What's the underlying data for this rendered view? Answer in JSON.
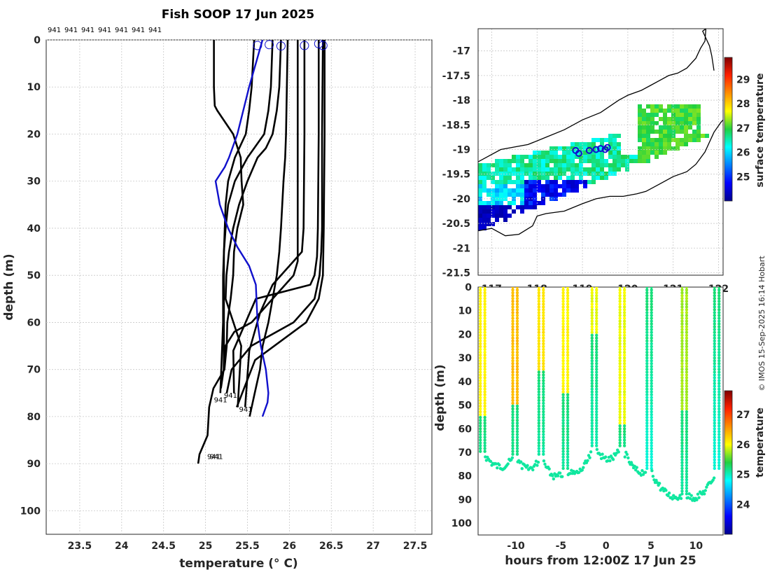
{
  "title": "Fish SOOP 17 Jun 2025",
  "credit": "© IMOS 15-Sep-2025 16:14 Hobart",
  "top_label_row": [
    "941",
    "941",
    "941",
    "941",
    "941",
    "941",
    "941"
  ],
  "chart_data": [
    {
      "type": "line",
      "name": "profiles",
      "xlabel": "temperature (° C)",
      "ylabel": "depth (m)",
      "xlim": [
        23.1,
        27.7
      ],
      "ylim": [
        105,
        0
      ],
      "xticks": [
        "23.5",
        "24",
        "24.5",
        "25",
        "25.5",
        "26",
        "26.5",
        "27",
        "27.5"
      ],
      "yticks": [
        "0",
        "10",
        "20",
        "30",
        "40",
        "50",
        "60",
        "70",
        "80",
        "90",
        "100"
      ],
      "grid": true,
      "mean_profile": {
        "x": [
          25.68,
          25.6,
          25.52,
          25.45,
          25.38,
          25.28,
          25.23,
          25.12,
          25.17,
          25.27,
          25.38,
          25.52,
          25.6,
          25.62,
          25.66,
          25.72,
          25.75,
          25.74,
          25.68
        ],
        "y": [
          0,
          5,
          10,
          15,
          20,
          25,
          27,
          30,
          35,
          40,
          44,
          48,
          52,
          60,
          65,
          70,
          75,
          77,
          80
        ]
      },
      "profiles": [
        {
          "x": [
            25.1,
            25.1,
            25.11,
            25.14,
            25.33,
            25.42,
            25.43,
            25.45,
            25.38,
            25.34,
            25.33,
            25.3,
            25.26,
            25.23,
            25.2,
            25.12,
            25.05,
            25.0,
            24.95,
            24.92
          ],
          "y": [
            0,
            10,
            14,
            15,
            20,
            25,
            30,
            35,
            40,
            45,
            50,
            55,
            60,
            65,
            70,
            74,
            78,
            84,
            88,
            90
          ]
        },
        {
          "x": [
            25.58,
            25.55,
            25.52,
            25.48,
            25.35,
            25.27,
            25.24,
            25.23,
            25.22,
            25.22,
            25.22,
            25.22,
            25.21,
            25.2
          ],
          "y": [
            0,
            10,
            15,
            20,
            25,
            30,
            35,
            40,
            45,
            50,
            60,
            65,
            70,
            74
          ]
        },
        {
          "x": [
            25.8,
            25.78,
            25.75,
            25.7,
            25.5,
            25.35,
            25.27,
            25.24,
            25.22,
            25.21,
            25.21,
            25.2
          ],
          "y": [
            0,
            10,
            15,
            20,
            25,
            30,
            35,
            40,
            45,
            50,
            60,
            75
          ]
        },
        {
          "x": [
            25.9,
            25.88,
            25.85,
            25.8,
            25.72,
            25.62,
            25.5,
            25.4,
            25.33,
            25.28,
            25.25,
            25.24,
            25.4,
            25.39
          ],
          "y": [
            0,
            10,
            15,
            20,
            23,
            25,
            30,
            35,
            40,
            45,
            50,
            55,
            65,
            78
          ]
        },
        {
          "x": [
            25.98,
            25.97,
            25.96,
            25.95,
            25.93,
            25.9,
            25.88,
            25.85,
            25.8,
            25.75,
            25.7,
            25.65,
            25.6,
            25.55
          ],
          "y": [
            0,
            10,
            20,
            25,
            30,
            40,
            45,
            50,
            55,
            60,
            65,
            70,
            75,
            80
          ]
        },
        {
          "x": [
            26.1,
            26.1,
            26.1,
            26.1,
            26.1,
            26.1,
            26.05,
            25.8,
            25.55,
            25.33,
            25.25,
            25.23
          ],
          "y": [
            0,
            10,
            20,
            30,
            40,
            47,
            50,
            55,
            60,
            62,
            65,
            70
          ]
        },
        {
          "x": [
            26.18,
            26.18,
            26.17,
            26.15,
            26.0,
            25.8,
            25.65,
            25.55,
            25.45
          ],
          "y": [
            0,
            20,
            40,
            45,
            48,
            52,
            58,
            66,
            78
          ]
        },
        {
          "x": [
            26.35,
            26.35,
            26.34,
            26.33,
            26.3,
            26.25,
            25.6,
            25.35,
            25.32
          ],
          "y": [
            0,
            20,
            40,
            46,
            50,
            52,
            55,
            66,
            75
          ]
        },
        {
          "x": [
            26.4,
            26.39,
            26.39,
            26.38,
            26.36,
            26.3,
            26.05,
            25.55,
            25.33,
            25.25
          ],
          "y": [
            0,
            20,
            40,
            45,
            50,
            55,
            60,
            65,
            70,
            75
          ]
        },
        {
          "x": [
            26.42,
            26.42,
            26.41,
            26.4,
            26.35,
            26.2,
            25.6,
            25.36
          ],
          "y": [
            0,
            20,
            40,
            50,
            55,
            60,
            68,
            78
          ]
        }
      ],
      "end_labels": [
        {
          "text": "941",
          "x": 25.22,
          "y": 76
        },
        {
          "text": "941",
          "x": 25.1,
          "y": 77
        },
        {
          "text": "941",
          "x": 25.4,
          "y": 79
        },
        {
          "text": "941",
          "x": 25.05,
          "y": 89
        },
        {
          "text": "941",
          "x": 25.02,
          "y": 89
        }
      ],
      "surface_markers": {
        "x": [
          25.62,
          25.76,
          25.9,
          26.18,
          26.35,
          26.4
        ],
        "y": [
          0.6,
          0.4,
          0.7,
          0.6,
          0.2,
          0.6
        ]
      },
      "colors": {
        "profiles": "#000000",
        "mean_profile": "#1010cc",
        "markers": "#1010cc"
      }
    },
    {
      "type": "heatmap",
      "name": "map",
      "xlim": [
        116.7,
        122.1
      ],
      "ylim": [
        -21.55,
        -16.55
      ],
      "xticks": [
        "117",
        "118",
        "119",
        "120",
        "121",
        "122"
      ],
      "yticks": [
        "-17",
        "-17.5",
        "-18",
        "-18.5",
        "-19",
        "-19.5",
        "-20",
        "-20.5",
        "-21",
        "-21.5"
      ],
      "colorbar_label": "surface temperature",
      "colorbar_ticks": [
        "25",
        "26",
        "27",
        "28",
        "29"
      ],
      "colorbar_range": [
        24.0,
        29.9
      ],
      "grid": true,
      "coastline_outer": {
        "x": [
          116.7,
          117.2,
          117.8,
          118.2,
          118.6,
          119.0,
          119.4,
          119.8,
          120.0,
          120.3,
          120.5,
          120.7,
          120.9,
          121.1,
          121.3,
          121.5,
          121.6,
          121.7,
          121.72,
          121.65,
          121.8,
          121.85,
          121.9
        ],
        "y": [
          -19.25,
          -19.0,
          -18.9,
          -18.75,
          -18.6,
          -18.4,
          -18.25,
          -18.0,
          -17.9,
          -17.8,
          -17.7,
          -17.6,
          -17.5,
          -17.45,
          -17.35,
          -17.15,
          -16.95,
          -16.8,
          -16.55,
          -16.6,
          -16.9,
          -17.1,
          -17.4
        ]
      },
      "coastline_inner": {
        "x": [
          116.7,
          117.0,
          117.3,
          117.6,
          117.9,
          118.0,
          118.2,
          118.6,
          119.0,
          119.3,
          119.6,
          119.9,
          120.2,
          120.4,
          120.7,
          121.0,
          121.3,
          121.5,
          121.7,
          121.9,
          122.05,
          122.1
        ],
        "y": [
          -20.65,
          -20.6,
          -20.75,
          -20.72,
          -20.55,
          -20.35,
          -20.3,
          -20.25,
          -20.1,
          -20.0,
          -19.95,
          -19.95,
          -19.9,
          -19.85,
          -19.7,
          -19.55,
          -19.45,
          -19.3,
          -19.05,
          -18.65,
          -18.45,
          -18.4
        ]
      },
      "track_markers": {
        "x": [
          118.85,
          118.92,
          119.15,
          119.3,
          119.4,
          119.5,
          119.55
        ],
        "y": [
          -19.02,
          -19.08,
          -19.02,
          -19.0,
          -18.98,
          -19.0,
          -18.96
        ]
      }
    },
    {
      "type": "scatter",
      "name": "section",
      "xlabel": "hours from 12:00Z 17 Jun 25",
      "ylabel": "depth (m)",
      "xlim": [
        -14.2,
        13.0
      ],
      "ylim": [
        105,
        0
      ],
      "xticks": [
        "-10",
        "-5",
        "0",
        "5",
        "10"
      ],
      "yticks": [
        "0",
        "10",
        "20",
        "30",
        "40",
        "50",
        "60",
        "70",
        "80",
        "90",
        "100"
      ],
      "colorbar_label": "temperature",
      "colorbar_ticks": [
        "24",
        "25",
        "26",
        "27"
      ],
      "colorbar_range": [
        23.0,
        27.8
      ],
      "casts": [
        {
          "t": -13.7,
          "bottom": 70,
          "tsurf": 26.1,
          "thermo": 55
        },
        {
          "t": -10.1,
          "bottom": 72,
          "tsurf": 26.4,
          "thermo": 50
        },
        {
          "t": -7.2,
          "bottom": 72,
          "tsurf": 26.2,
          "thermo": 35
        },
        {
          "t": -4.5,
          "bottom": 78,
          "tsurf": 26.1,
          "thermo": 45
        },
        {
          "t": -1.3,
          "bottom": 68,
          "tsurf": 26.0,
          "thermo": 20
        },
        {
          "t": 1.8,
          "bottom": 68,
          "tsurf": 26.0,
          "thermo": 58
        },
        {
          "t": 4.8,
          "bottom": 77,
          "tsurf": 25.3,
          "thermo": 0
        },
        {
          "t": 8.7,
          "bottom": 88,
          "tsurf": 25.8,
          "thermo": 52
        },
        {
          "t": 12.3,
          "bottom": 78,
          "tsurf": 25.2,
          "thermo": 0
        }
      ]
    }
  ]
}
